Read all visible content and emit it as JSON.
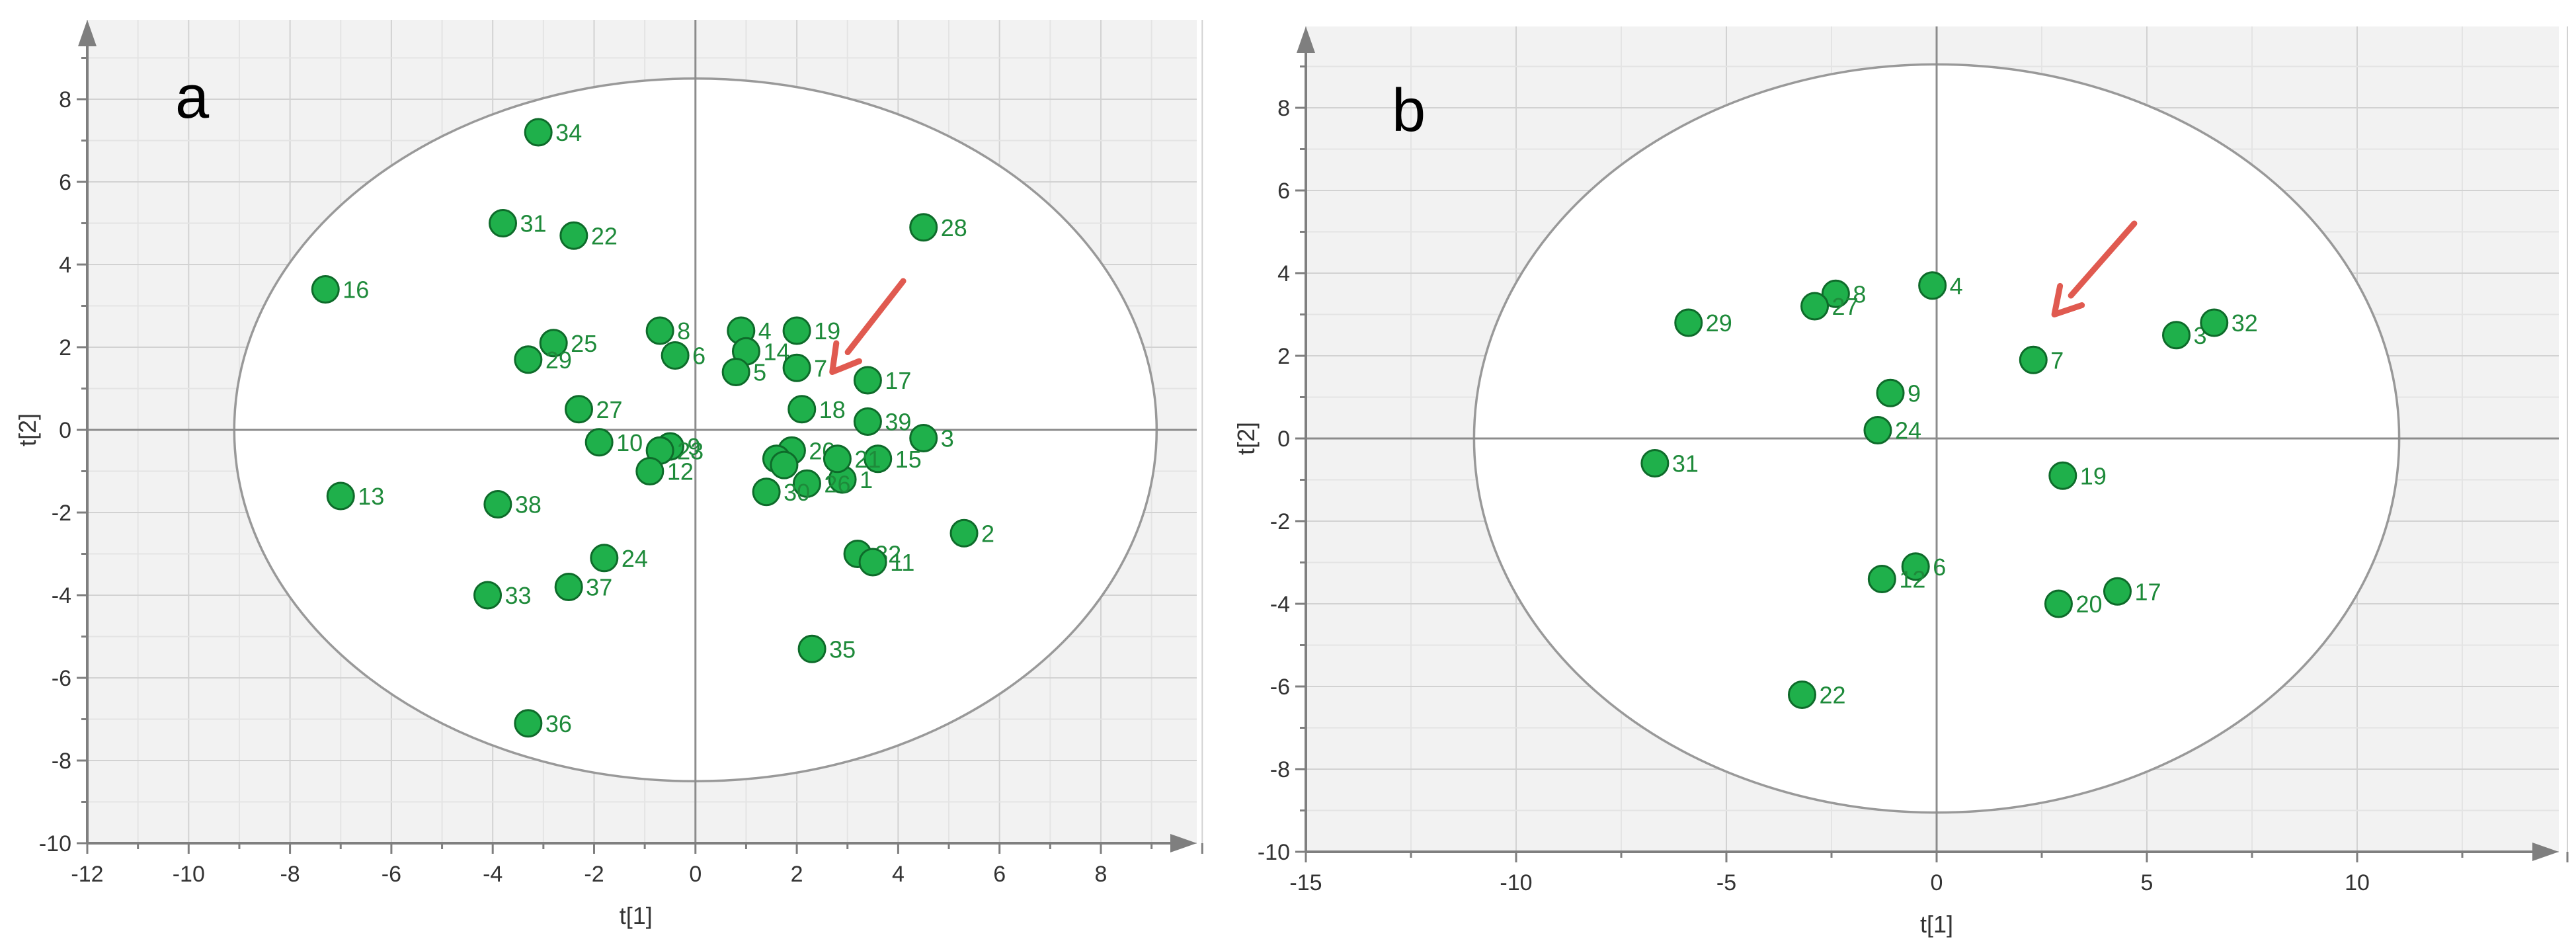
{
  "chart_data": [
    {
      "type": "scatter",
      "panel_label": "a",
      "xlabel": "t[1]",
      "ylabel": "t[2]",
      "xlim": [
        -12,
        10
      ],
      "ylim": [
        -10,
        10
      ],
      "xticks": [
        -12,
        -10,
        -8,
        -6,
        -4,
        -2,
        0,
        2,
        4,
        6,
        8
      ],
      "yticks": [
        -10,
        -8,
        -6,
        -4,
        -2,
        0,
        2,
        4,
        6,
        8
      ],
      "ellipse": {
        "cx": 0,
        "cy": 0,
        "rx": 9.1,
        "ry": 8.5
      },
      "arrow": {
        "from": [
          4.1,
          3.6
        ],
        "to": [
          2.7,
          1.4
        ]
      },
      "point_color": "#1fb04b",
      "label_color": "#1e8a3a",
      "ellipse_color": "#999999",
      "arrow_color": "#e05a50",
      "points": [
        {
          "label": "34",
          "x": -3.1,
          "y": 7.2
        },
        {
          "label": "31",
          "x": -3.8,
          "y": 5.0
        },
        {
          "label": "22",
          "x": -2.4,
          "y": 4.7
        },
        {
          "label": "28",
          "x": 4.5,
          "y": 4.9
        },
        {
          "label": "16",
          "x": -7.3,
          "y": 3.4
        },
        {
          "label": "8",
          "x": -0.7,
          "y": 2.4
        },
        {
          "label": "6",
          "x": -0.4,
          "y": 1.8
        },
        {
          "label": "4",
          "x": 0.9,
          "y": 2.4
        },
        {
          "label": "14",
          "x": 1.0,
          "y": 1.9
        },
        {
          "label": "5",
          "x": 0.8,
          "y": 1.4
        },
        {
          "label": "19",
          "x": 2.0,
          "y": 2.4
        },
        {
          "label": "7",
          "x": 2.0,
          "y": 1.5
        },
        {
          "label": "17",
          "x": 3.4,
          "y": 1.2
        },
        {
          "label": "25",
          "x": -2.8,
          "y": 2.1
        },
        {
          "label": "29",
          "x": -3.3,
          "y": 1.7
        },
        {
          "label": "27",
          "x": -2.3,
          "y": 0.5
        },
        {
          "label": "18",
          "x": 2.1,
          "y": 0.5
        },
        {
          "label": "39",
          "x": 3.4,
          "y": 0.2
        },
        {
          "label": "20",
          "x": 1.9,
          "y": -0.5
        },
        {
          "label": "3",
          "x": 4.5,
          "y": -0.2
        },
        {
          "label": "15",
          "x": 3.6,
          "y": -0.7
        },
        {
          "label": "1",
          "x": 2.9,
          "y": -1.2
        },
        {
          "label": "21",
          "x": 2.8,
          "y": -0.7
        },
        {
          "label": "26",
          "x": 2.2,
          "y": -1.3
        },
        {
          "label": "30",
          "x": 1.4,
          "y": -1.5
        },
        {
          "label": "",
          "x": 1.6,
          "y": -0.7
        },
        {
          "label": "",
          "x": 1.75,
          "y": -0.85
        },
        {
          "label": "9",
          "x": -0.5,
          "y": -0.4
        },
        {
          "label": "23",
          "x": -0.7,
          "y": -0.5
        },
        {
          "label": "10",
          "x": -1.9,
          "y": -0.3
        },
        {
          "label": "12",
          "x": -0.9,
          "y": -1.0
        },
        {
          "label": "13",
          "x": -7.0,
          "y": -1.6
        },
        {
          "label": "38",
          "x": -3.9,
          "y": -1.8
        },
        {
          "label": "2",
          "x": 5.3,
          "y": -2.5
        },
        {
          "label": "24",
          "x": -1.8,
          "y": -3.1
        },
        {
          "label": "32",
          "x": 3.2,
          "y": -3.0
        },
        {
          "label": "11",
          "x": 3.5,
          "y": -3.2
        },
        {
          "label": "37",
          "x": -2.5,
          "y": -3.8
        },
        {
          "label": "33",
          "x": -4.1,
          "y": -4.0
        },
        {
          "label": "35",
          "x": 2.3,
          "y": -5.3
        },
        {
          "label": "36",
          "x": -3.3,
          "y": -7.1
        }
      ]
    },
    {
      "type": "scatter",
      "panel_label": "b",
      "xlabel": "t[1]",
      "ylabel": "t[2]",
      "xlim": [
        -15,
        15
      ],
      "ylim": [
        -10,
        10
      ],
      "xticks": [
        -15,
        -10,
        -5,
        0,
        5,
        10
      ],
      "yticks": [
        -10,
        -8,
        -6,
        -4,
        -2,
        0,
        2,
        4,
        6,
        8
      ],
      "ellipse": {
        "cx": 0,
        "cy": 0,
        "rx": 11.0,
        "ry": 9.05
      },
      "arrow": {
        "from": [
          4.7,
          5.2
        ],
        "to": [
          2.8,
          3.0
        ]
      },
      "point_color": "#1fb04b",
      "label_color": "#1e8a3a",
      "ellipse_color": "#999999",
      "arrow_color": "#e05a50",
      "points": [
        {
          "label": "4",
          "x": -0.1,
          "y": 3.7
        },
        {
          "label": "8",
          "x": -2.4,
          "y": 3.5
        },
        {
          "label": "27",
          "x": -2.9,
          "y": 3.2
        },
        {
          "label": "29",
          "x": -5.9,
          "y": 2.8
        },
        {
          "label": "7",
          "x": 2.3,
          "y": 1.9
        },
        {
          "label": "3",
          "x": 5.7,
          "y": 2.5
        },
        {
          "label": "32",
          "x": 6.6,
          "y": 2.8
        },
        {
          "label": "9",
          "x": -1.1,
          "y": 1.1
        },
        {
          "label": "24",
          "x": -1.4,
          "y": 0.2
        },
        {
          "label": "31",
          "x": -6.7,
          "y": -0.6
        },
        {
          "label": "19",
          "x": 3.0,
          "y": -0.9
        },
        {
          "label": "6",
          "x": -0.5,
          "y": -3.1
        },
        {
          "label": "12",
          "x": -1.3,
          "y": -3.4
        },
        {
          "label": "17",
          "x": 4.3,
          "y": -3.7
        },
        {
          "label": "20",
          "x": 2.9,
          "y": -4.0
        },
        {
          "label": "22",
          "x": -3.2,
          "y": -6.2
        }
      ]
    }
  ]
}
